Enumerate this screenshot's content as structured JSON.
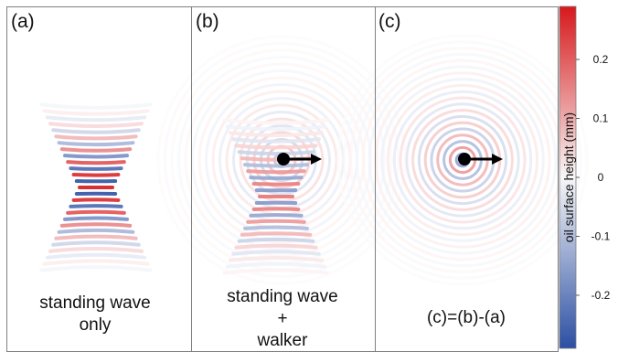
{
  "panels": [
    {
      "label": "(a)",
      "caption": [
        "standing wave",
        "only"
      ],
      "has_walker": false
    },
    {
      "label": "(b)",
      "caption": [
        "standing wave",
        "+",
        "walker"
      ],
      "has_walker": true
    },
    {
      "label": "(c)",
      "caption": [
        "(c)=(b)-(a)"
      ],
      "has_walker": true
    }
  ],
  "colorbar": {
    "label": "oil surface height (mm)",
    "ticks": [
      "0.2",
      "0.1",
      "0",
      "-0.1",
      "-0.2"
    ],
    "tick_values": [
      0.2,
      0.1,
      0,
      -0.1,
      -0.2
    ],
    "range": [
      -0.29,
      0.29
    ],
    "colors": {
      "positive": "#d7191c",
      "zero": "#f7f7f7",
      "negative": "#2c4fa3"
    }
  },
  "colors": {
    "walker": "#000000",
    "border": "#7f7f7f"
  }
}
